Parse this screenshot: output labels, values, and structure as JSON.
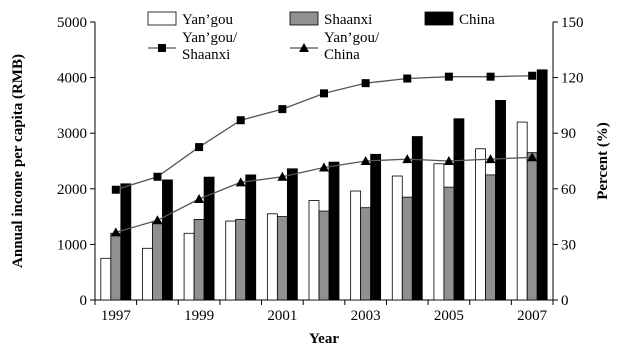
{
  "chart_data": {
    "type": "bar",
    "xlabel": "Year",
    "ylabel": "Annual income per capita (RMB)",
    "ylabel_right": "Percent (%)",
    "ylim": [
      0,
      5000
    ],
    "ylim_right": [
      0,
      150
    ],
    "yticks": [
      "0",
      "1000",
      "2000",
      "3000",
      "4000",
      "5000"
    ],
    "yticks_right": [
      "0",
      "30",
      "60",
      "90",
      "120",
      "150"
    ],
    "x": [
      "1997",
      "1998",
      "1999",
      "2000",
      "2001",
      "2002",
      "2003",
      "2004",
      "2005",
      "2006",
      "2007"
    ],
    "xtick_labels": [
      "1997",
      "1999",
      "2001",
      "2003",
      "2005",
      "2007"
    ],
    "grid": false,
    "legend_position": "top",
    "series": [
      {
        "name": "Yan’gou",
        "kind": "bar",
        "axis": "left",
        "color": "#ffffff",
        "values": [
          750,
          930,
          1200,
          1420,
          1550,
          1790,
          1960,
          2230,
          2450,
          2720,
          3200
        ]
      },
      {
        "name": "Shaanxi",
        "kind": "bar",
        "axis": "left",
        "color": "#909090",
        "values": [
          1200,
          1390,
          1450,
          1450,
          1500,
          1600,
          1660,
          1850,
          2030,
          2250,
          2650
        ]
      },
      {
        "name": "China",
        "kind": "bar",
        "axis": "left",
        "color": "#000000",
        "values": [
          2090,
          2160,
          2210,
          2250,
          2360,
          2480,
          2620,
          2940,
          3260,
          3590,
          4140
        ]
      },
      {
        "name": "Yan’gou/\nShaanxi",
        "kind": "line",
        "axis": "right",
        "marker": "square",
        "values": [
          59.5,
          66.5,
          82.5,
          97,
          103,
          111.5,
          117,
          119.5,
          120.5,
          120.5,
          121
        ]
      },
      {
        "name": "Yan’gou/\nChina",
        "kind": "line",
        "axis": "right",
        "marker": "triangle",
        "values": [
          36.5,
          43,
          54.5,
          63.5,
          66.5,
          71.5,
          75,
          76,
          75,
          76,
          77
        ]
      }
    ]
  }
}
